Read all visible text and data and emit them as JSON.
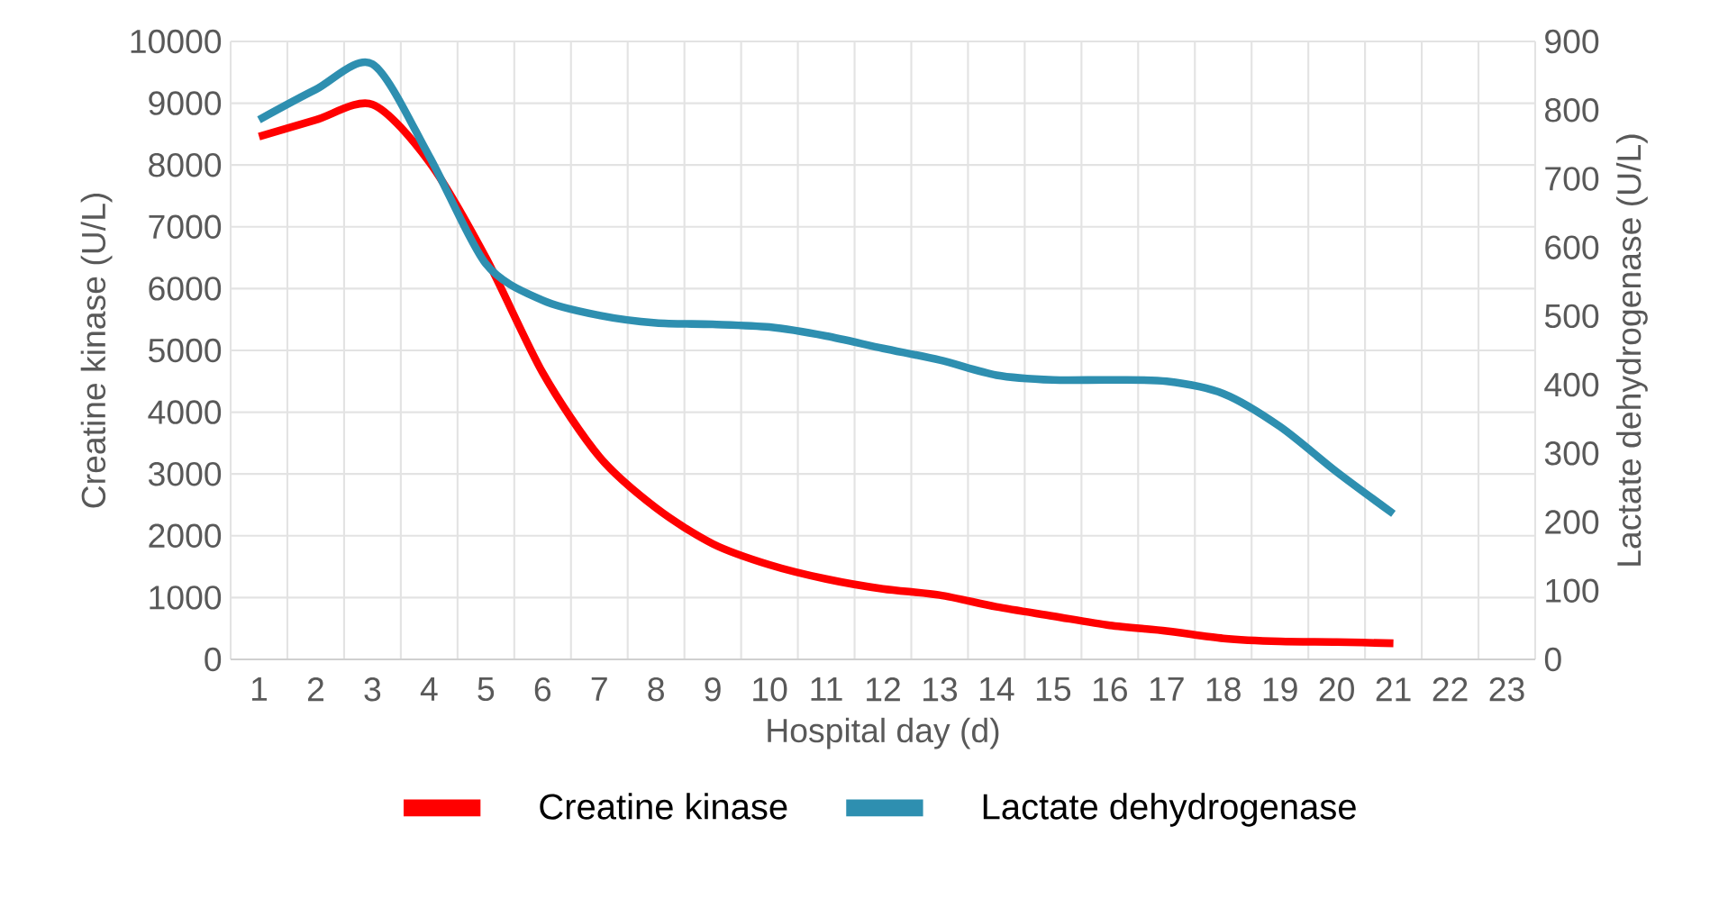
{
  "chart_data": {
    "type": "line",
    "xlabel": "Hospital day (d)",
    "ylabel": "Creatine kinase  (U/L)",
    "y2label": "Lactate dehydrogenase (U/L)",
    "categories": [
      "1",
      "2",
      "3",
      "4",
      "5",
      "6",
      "7",
      "8",
      "9",
      "10",
      "11",
      "12",
      "13",
      "14",
      "15",
      "16",
      "17",
      "18",
      "19",
      "20",
      "21",
      "22",
      "23"
    ],
    "series": [
      {
        "name": "Creatine kinase",
        "color": "#ff0000",
        "values": [
          8460,
          8730,
          8980,
          8050,
          6500,
          4640,
          3280,
          2450,
          1870,
          1530,
          1300,
          1140,
          1040,
          850,
          700,
          550,
          460,
          340,
          290,
          280,
          260,
          null,
          null
        ]
      },
      {
        "name": "Lactate dehydrogenase",
        "color": "#2e8fb0",
        "axis": "y2",
        "values": [
          786,
          830,
          867,
          733,
          576,
          523,
          501,
          490,
          488,
          484,
          471,
          453,
          436,
          414,
          407,
          407,
          405,
          387,
          339,
          273,
          212,
          null,
          null
        ]
      }
    ],
    "ylim": [
      0,
      10000
    ],
    "yticks": [
      0,
      1000,
      2000,
      3000,
      4000,
      5000,
      6000,
      7000,
      8000,
      9000,
      10000
    ],
    "y2lim": [
      0,
      900
    ],
    "y2ticks": [
      0,
      100,
      200,
      300,
      400,
      500,
      600,
      700,
      800,
      900
    ],
    "grid": true,
    "legend": "bottom",
    "marker": "none",
    "line_style": "solid"
  }
}
